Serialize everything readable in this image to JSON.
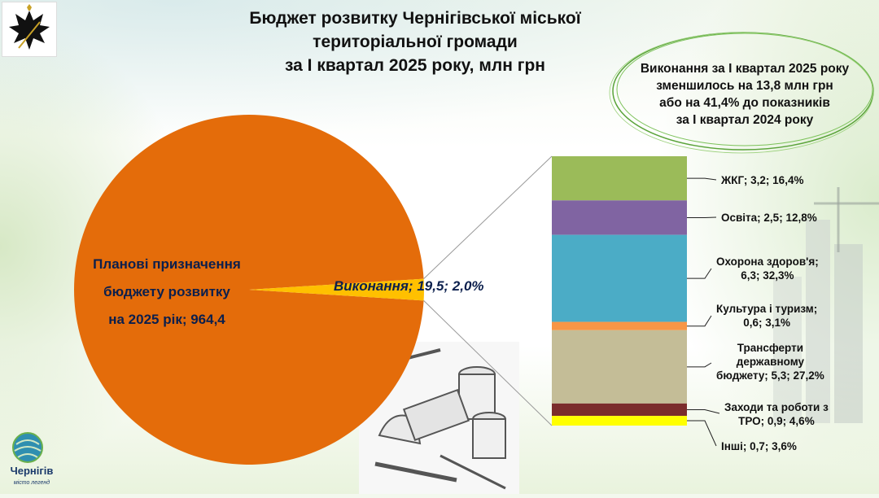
{
  "title": {
    "line1": "Бюджет розвитку Чернігівської міської",
    "line2": "територіальної громади",
    "line3": "за I квартал 2025 року, млн грн"
  },
  "callout": {
    "line1": "Виконання за I квартал 2025 року",
    "line2": "зменшилось на 13,8 млн грн",
    "line3": "або на 41,4% до показників",
    "line4": "за I квартал 2024 року"
  },
  "pie_labels": {
    "main_line1": "Планові призначення",
    "main_line2": "бюджету розвитку",
    "main_line3": "на 2025 рік; 964,4",
    "slice": "Виконання;  19,5; 2,0%"
  },
  "logo": {
    "name": "Чернігів",
    "tagline": "місто легенд"
  },
  "colors": {
    "pie_main": "#e46c0a",
    "pie_slice": "#ffc000",
    "zkg": "#9bbb59",
    "osvita": "#8064a2",
    "ohorona": "#4bacc6",
    "kultura": "#f79646",
    "transferty": "#c4bd97",
    "tro": "#7b2c2c",
    "inshi": "#ffff00"
  },
  "chart_data": [
    {
      "type": "pie",
      "slices": [
        {
          "label": "Планові призначення бюджету розвитку на 2025 рік",
          "value": 964.4
        },
        {
          "label": "Виконання",
          "value": 19.5,
          "percent": 2.0
        }
      ]
    },
    {
      "type": "bar",
      "stacked": true,
      "segments": [
        {
          "name": "ЖКГ",
          "value": 3.2,
          "percent": 16.4,
          "label": "ЖКГ;  3,2; 16,4%"
        },
        {
          "name": "Освіта",
          "value": 2.5,
          "percent": 12.8,
          "label": "Освіта;  2,5; 12,8%"
        },
        {
          "name": "Охорона здоров'я",
          "value": 6.3,
          "percent": 32.3,
          "label_line1": "Охорона здоров'я;",
          "label_line2": "6,3; 32,3%"
        },
        {
          "name": "Культура і туризм",
          "value": 0.6,
          "percent": 3.1,
          "label_line1": "Культура і туризм;",
          "label_line2": "0,6; 3,1%"
        },
        {
          "name": "Трансферти державному бюджету",
          "value": 5.3,
          "percent": 27.2,
          "label_line1": "Трансферти",
          "label_line2": "державному",
          "label_line3": "бюджету;  5,3; 27,2%"
        },
        {
          "name": "Заходи та роботи з ТРО",
          "value": 0.9,
          "percent": 4.6,
          "label_line1": "Заходи та роботи з",
          "label_line2": "ТРО;  0,9; 4,6%"
        },
        {
          "name": "Інші",
          "value": 0.7,
          "percent": 3.6,
          "label": "Інші;  0,7; 3,6%"
        }
      ]
    }
  ]
}
